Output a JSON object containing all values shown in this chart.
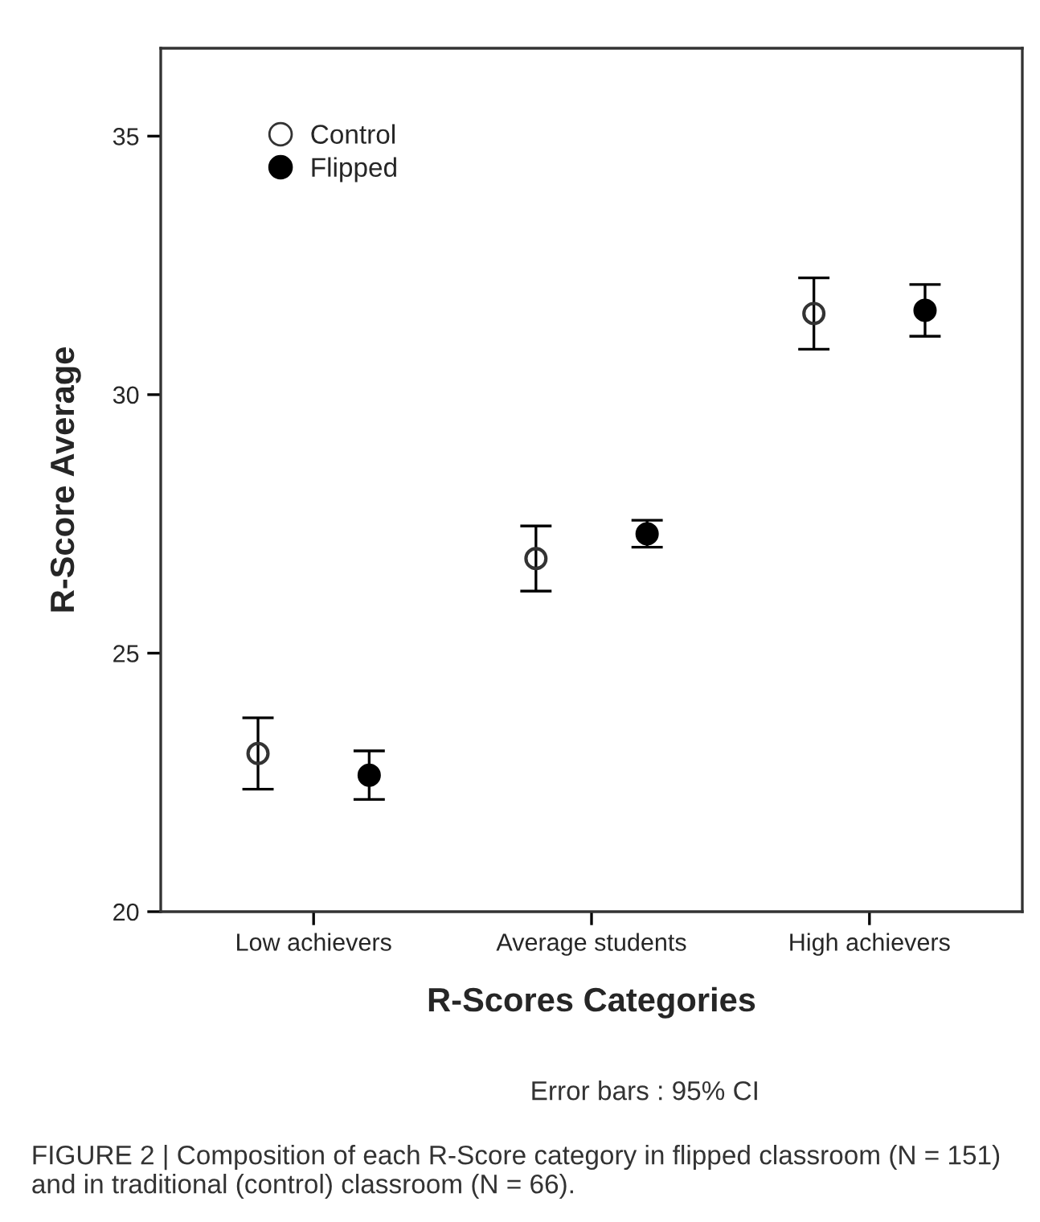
{
  "chart_data": {
    "type": "scatter",
    "xlabel": "R-Scores Categories",
    "ylabel": "R-Score Average",
    "categories": [
      "Low achievers",
      "Average students",
      "High achievers"
    ],
    "series": [
      {
        "name": "Control",
        "color": "#333333",
        "values": [
          23.06,
          26.83,
          31.57
        ],
        "errors": [
          0.69,
          0.63,
          0.69
        ]
      },
      {
        "name": "Flipped",
        "color": "#000000",
        "values": [
          22.64,
          27.31,
          31.63
        ],
        "errors": [
          0.47,
          0.26,
          0.5
        ]
      }
    ],
    "ylim": [
      20,
      36.7
    ],
    "yticks": [
      20,
      25,
      30,
      35
    ],
    "grid": false,
    "legend": "top left",
    "marker": "circle",
    "annotations": [
      "Error bars : 95% CI",
      "FIGURE 2 | Composition of each R-Score category in flipped classroom (N = 151) and in traditional (control) classroom (N = 66)."
    ]
  }
}
